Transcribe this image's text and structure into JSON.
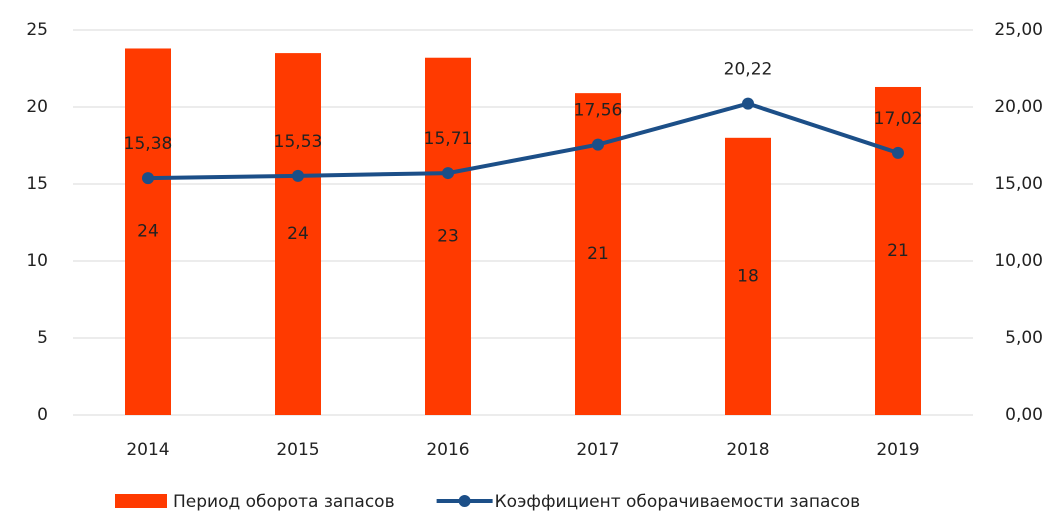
{
  "chart_data": {
    "type": "bar_line",
    "categories": [
      "2014",
      "2015",
      "2016",
      "2017",
      "2018",
      "2019"
    ],
    "series": [
      {
        "name": "Период оборота запасов",
        "type": "bar",
        "color": "#ff3a00",
        "axis": "y",
        "values": [
          23.8,
          23.5,
          23.2,
          20.9,
          18.0,
          21.3
        ],
        "value_labels": [
          "24",
          "24",
          "23",
          "21",
          "18",
          "21"
        ]
      },
      {
        "name": "Коэффициент оборачиваемости запасов",
        "type": "line",
        "color": "#1c4f88",
        "axis": "y2",
        "values": [
          15.38,
          15.53,
          15.71,
          17.56,
          20.22,
          17.02
        ],
        "value_labels": [
          "15,38",
          "15,53",
          "15,71",
          "17,56",
          "20,22",
          "17,02"
        ]
      }
    ],
    "ylim": [
      0,
      25
    ],
    "yticks": [
      0,
      5,
      10,
      15,
      20,
      25
    ],
    "y2lim": [
      0,
      25
    ],
    "y2ticks": [
      {
        "value": 0,
        "label": "0,00"
      },
      {
        "value": 5,
        "label": "5,00"
      },
      {
        "value": 10,
        "label": "10,00"
      },
      {
        "value": 15,
        "label": "15,00"
      },
      {
        "value": 20,
        "label": "20,00"
      },
      {
        "value": 25,
        "label": "25,00"
      }
    ],
    "grid": true,
    "legend": "bottom"
  }
}
